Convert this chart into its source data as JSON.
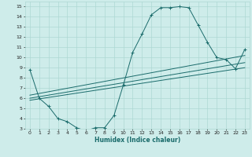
{
  "title": "",
  "xlabel": "Humidex (Indice chaleur)",
  "ylabel": "",
  "bg_color": "#ceecea",
  "grid_color": "#aed8d4",
  "line_color": "#1a6b6b",
  "xlim": [
    -0.5,
    23.5
  ],
  "ylim": [
    3,
    15.5
  ],
  "xticks": [
    0,
    1,
    2,
    3,
    4,
    5,
    6,
    7,
    8,
    9,
    10,
    11,
    12,
    13,
    14,
    15,
    16,
    17,
    18,
    19,
    20,
    21,
    22,
    23
  ],
  "yticks": [
    3,
    4,
    5,
    6,
    7,
    8,
    9,
    10,
    11,
    12,
    13,
    14,
    15
  ],
  "series": [
    {
      "x": [
        0,
        1,
        2,
        3,
        4,
        5,
        6,
        7,
        8,
        9,
        10,
        11,
        12,
        13,
        14,
        15,
        16,
        17,
        18,
        19,
        20,
        21,
        22,
        23
      ],
      "y": [
        8.8,
        6.0,
        5.2,
        4.0,
        3.7,
        3.1,
        2.8,
        3.1,
        3.1,
        4.3,
        7.3,
        10.5,
        12.3,
        14.2,
        14.9,
        14.9,
        15.0,
        14.9,
        13.2,
        11.5,
        10.0,
        9.8,
        8.9,
        10.8
      ],
      "marker": true
    },
    {
      "x": [
        0,
        23
      ],
      "y": [
        6.0,
        9.5
      ],
      "marker": false
    },
    {
      "x": [
        0,
        23
      ],
      "y": [
        6.3,
        10.2
      ],
      "marker": false
    },
    {
      "x": [
        0,
        23
      ],
      "y": [
        5.8,
        9.0
      ],
      "marker": false
    }
  ]
}
